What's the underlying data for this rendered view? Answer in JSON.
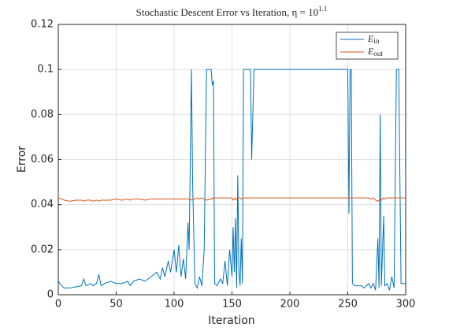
{
  "chart_data": {
    "type": "line",
    "title": "Stochastic Descent Error vs Iteration, η = 10^1.1",
    "xlabel": "Iteration",
    "ylabel": "Error",
    "x": [
      0,
      3,
      5,
      10,
      15,
      20,
      22,
      24,
      28,
      30,
      33,
      35,
      37,
      40,
      45,
      50,
      55,
      60,
      62,
      65,
      70,
      75,
      80,
      85,
      88,
      90,
      92,
      95,
      97,
      100,
      102,
      104,
      106,
      108,
      110,
      112,
      113,
      115,
      116,
      118,
      120,
      122,
      124,
      126,
      128,
      132,
      133,
      134,
      135,
      137,
      140,
      142,
      144,
      146,
      148,
      150,
      151,
      152,
      153,
      154,
      155,
      156,
      157,
      158,
      159,
      160,
      164,
      166,
      167,
      169,
      250,
      251,
      252,
      253,
      254,
      256,
      262,
      264,
      268,
      270,
      272,
      274,
      276,
      277,
      278,
      279,
      281,
      282,
      284,
      286,
      288,
      290,
      292,
      294,
      296,
      300
    ],
    "series": [
      {
        "name": "E_in",
        "color": "#0072bd",
        "values": [
          0.006,
          0.004,
          0.003,
          0.003,
          0.0035,
          0.004,
          0.007,
          0.004,
          0.005,
          0.004,
          0.005,
          0.009,
          0.004,
          0.005,
          0.006,
          0.005,
          0.005,
          0.006,
          0.004,
          0.006,
          0.007,
          0.006,
          0.008,
          0.01,
          0.007,
          0.012,
          0.008,
          0.015,
          0.01,
          0.02,
          0.01,
          0.022,
          0.008,
          0.016,
          0.007,
          0.032,
          0.02,
          0.1,
          0.05,
          0.005,
          0.003,
          0.008,
          0.004,
          0.02,
          0.1,
          0.1,
          0.093,
          0.095,
          0.005,
          0.004,
          0.007,
          0.005,
          0.015,
          0.004,
          0.02,
          0.008,
          0.03,
          0.01,
          0.034,
          0.003,
          0.053,
          0.01,
          0.004,
          0.025,
          0.005,
          0.1,
          0.1,
          0.1,
          0.06,
          0.1,
          0.1,
          0.036,
          0.1,
          0.1,
          0.005,
          0.004,
          0.004,
          0.003,
          0.005,
          0.003,
          0.005,
          0.002,
          0.025,
          0.003,
          0.08,
          0.004,
          0.035,
          0.004,
          0.005,
          0.002,
          0.008,
          0.003,
          0.1,
          0.1,
          0.005,
          0.005
        ]
      },
      {
        "name": "E_out",
        "color": "#d95319",
        "values": [
          0.043,
          0.0425,
          0.042,
          0.0415,
          0.042,
          0.042,
          0.0415,
          0.042,
          0.042,
          0.0415,
          0.042,
          0.0415,
          0.042,
          0.042,
          0.042,
          0.0425,
          0.042,
          0.0425,
          0.042,
          0.0425,
          0.0425,
          0.042,
          0.0425,
          0.0425,
          0.0425,
          0.0425,
          0.0425,
          0.0425,
          0.0425,
          0.0425,
          0.0425,
          0.0425,
          0.0425,
          0.0425,
          0.0425,
          0.0425,
          0.0425,
          0.042,
          0.0425,
          0.0425,
          0.043,
          0.0425,
          0.043,
          0.0425,
          0.042,
          0.0425,
          0.043,
          0.0425,
          0.043,
          0.043,
          0.043,
          0.043,
          0.043,
          0.043,
          0.043,
          0.043,
          0.042,
          0.0425,
          0.043,
          0.042,
          0.0425,
          0.043,
          0.043,
          0.0425,
          0.043,
          0.043,
          0.043,
          0.043,
          0.043,
          0.043,
          0.043,
          0.043,
          0.043,
          0.043,
          0.043,
          0.043,
          0.043,
          0.043,
          0.043,
          0.0425,
          0.043,
          0.042,
          0.0415,
          0.042,
          0.0425,
          0.042,
          0.043,
          0.0425,
          0.043,
          0.043,
          0.043,
          0.043,
          0.043,
          0.043,
          0.043,
          0.043
        ]
      }
    ],
    "xlim": [
      0,
      300
    ],
    "xticks": [
      0,
      50,
      100,
      150,
      200,
      250,
      300
    ],
    "ylim": [
      0,
      0.12
    ],
    "yticks": [
      0,
      0.02,
      0.04,
      0.06,
      0.08,
      0.1,
      0.12
    ],
    "grid": true,
    "legend": "northeast"
  }
}
